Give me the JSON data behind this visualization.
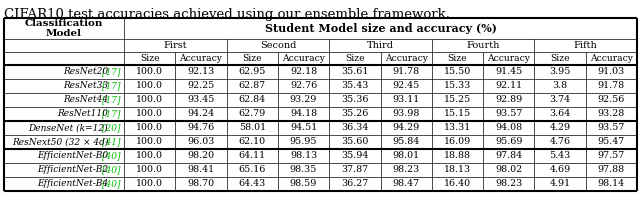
{
  "caption": "CIFAR10 test accuracies achieved using our ensemble framework.",
  "subheaders": [
    "First",
    "Second",
    "Third",
    "Fourth",
    "Fifth"
  ],
  "sub_subheaders": [
    "Size",
    "Accuracy",
    "Size",
    "Accuracy",
    "Size",
    "Accuracy",
    "Size",
    "Accuracy",
    "Size",
    "Accuracy"
  ],
  "rows_resnet": [
    [
      "ResNet20",
      "[17]",
      "100.0",
      "92.13",
      "62.95",
      "92.18",
      "35.61",
      "91.78",
      "15.50",
      "91.45",
      "3.95",
      "91.03"
    ],
    [
      "ResNet33",
      "[17]",
      "100.0",
      "92.25",
      "62.87",
      "92.76",
      "35.43",
      "92.45",
      "15.33",
      "92.11",
      "3.8",
      "91.78"
    ],
    [
      "ResNet44",
      "[17]",
      "100.0",
      "93.45",
      "62.84",
      "93.29",
      "35.36",
      "93.11",
      "15.25",
      "92.89",
      "3.74",
      "92.56"
    ],
    [
      "ResNet110",
      "[17]",
      "100.0",
      "94.24",
      "62.79",
      "94.18",
      "35.26",
      "93.98",
      "15.15",
      "93.57",
      "3.64",
      "93.28"
    ]
  ],
  "row_densenet": [
    "DenseNet (k=12)",
    "[20]",
    "100.0",
    "94.76",
    "58.01",
    "94.51",
    "36.34",
    "94.29",
    "13.31",
    "94.08",
    "4.29",
    "93.57"
  ],
  "row_resnext": [
    "ResNext50 (32 × 4d)",
    "[41]",
    "100.0",
    "96.03",
    "62.10",
    "95.95",
    "35.60",
    "95.84",
    "16.09",
    "95.69",
    "4.76",
    "95.47"
  ],
  "rows_efficient": [
    [
      "EfficientNet-B0",
      "[40]",
      "100.0",
      "98.20",
      "64.11",
      "98.13",
      "35.94",
      "98.01",
      "18.88",
      "97.84",
      "5.43",
      "97.57"
    ],
    [
      "EfficientNet-B2",
      "[40]",
      "100.0",
      "98.41",
      "65.16",
      "98.35",
      "37.87",
      "98.23",
      "18.13",
      "98.02",
      "4.69",
      "97.88"
    ],
    [
      "EfficientNet-B4",
      "[40]",
      "100.0",
      "98.70",
      "64.43",
      "98.59",
      "36.27",
      "98.47",
      "16.40",
      "98.23",
      "4.91",
      "98.14"
    ]
  ],
  "ref_color": "#00bb00",
  "thick_lw": 1.5,
  "thin_lw": 0.5,
  "caption_fontsize": 9.5,
  "header_fontsize": 7.5,
  "subheader_fontsize": 7.0,
  "data_fontsize": 6.8
}
